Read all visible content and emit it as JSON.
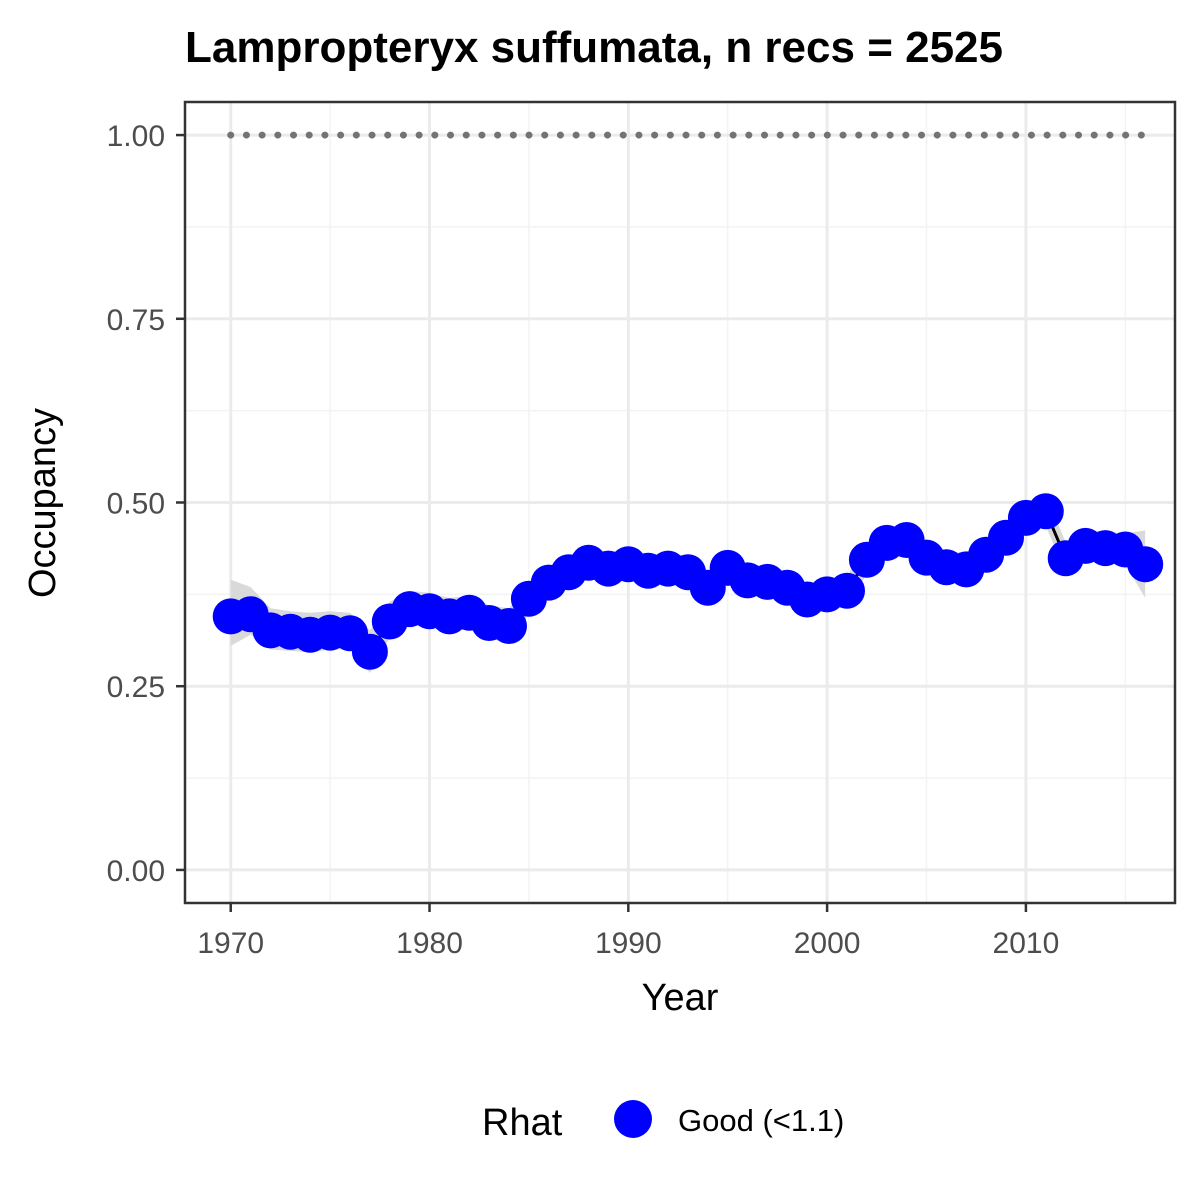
{
  "chart_data": {
    "type": "line",
    "title": "Lampropteryx suffumata, n recs = 2525",
    "xlabel": "Year",
    "ylabel": "Occupancy",
    "xlim": [
      1967.7,
      2017.5
    ],
    "ylim": [
      -0.045,
      1.045
    ],
    "x_ticks": [
      1970,
      1980,
      1990,
      2000,
      2010
    ],
    "x_tick_labels": [
      "1970",
      "1980",
      "1990",
      "2000",
      "2010"
    ],
    "y_ticks": [
      0,
      0.25,
      0.5,
      0.75,
      1.0
    ],
    "y_tick_labels": [
      "0.00",
      "0.25",
      "0.50",
      "0.75",
      "1.00"
    ],
    "grid": true,
    "x": [
      1970,
      1971,
      1972,
      1973,
      1974,
      1975,
      1976,
      1977,
      1978,
      1979,
      1980,
      1981,
      1982,
      1983,
      1984,
      1985,
      1986,
      1987,
      1988,
      1989,
      1990,
      1991,
      1992,
      1993,
      1994,
      1995,
      1996,
      1997,
      1998,
      1999,
      2000,
      2001,
      2002,
      2003,
      2004,
      2005,
      2006,
      2007,
      2008,
      2009,
      2010,
      2011,
      2012,
      2013,
      2014,
      2015,
      2016
    ],
    "series": [
      {
        "values": [
          0.345,
          0.348,
          0.326,
          0.324,
          0.32,
          0.323,
          0.322,
          0.297,
          0.338,
          0.355,
          0.352,
          0.345,
          0.35,
          0.336,
          0.332,
          0.369,
          0.391,
          0.405,
          0.418,
          0.41,
          0.416,
          0.407,
          0.41,
          0.405,
          0.384,
          0.411,
          0.394,
          0.392,
          0.384,
          0.368,
          0.375,
          0.38,
          0.422,
          0.445,
          0.449,
          0.425,
          0.412,
          0.409,
          0.429,
          0.452,
          0.479,
          0.488,
          0.424,
          0.441,
          0.438,
          0.436,
          0.416
        ],
        "lower": [
          0.305,
          0.32,
          0.3,
          0.298,
          0.296,
          0.3,
          0.3,
          0.268,
          0.316,
          0.333,
          0.33,
          0.324,
          0.328,
          0.314,
          0.31,
          0.348,
          0.37,
          0.385,
          0.398,
          0.39,
          0.396,
          0.387,
          0.39,
          0.385,
          0.364,
          0.391,
          0.374,
          0.372,
          0.365,
          0.35,
          0.357,
          0.362,
          0.402,
          0.425,
          0.429,
          0.405,
          0.392,
          0.389,
          0.409,
          0.432,
          0.459,
          0.468,
          0.404,
          0.421,
          0.418,
          0.416,
          0.37
        ],
        "upper": [
          0.395,
          0.385,
          0.356,
          0.352,
          0.35,
          0.352,
          0.35,
          0.326,
          0.365,
          0.38,
          0.377,
          0.37,
          0.373,
          0.36,
          0.356,
          0.392,
          0.413,
          0.427,
          0.44,
          0.432,
          0.438,
          0.429,
          0.432,
          0.427,
          0.406,
          0.433,
          0.416,
          0.414,
          0.405,
          0.388,
          0.395,
          0.4,
          0.444,
          0.467,
          0.471,
          0.447,
          0.434,
          0.431,
          0.451,
          0.474,
          0.501,
          0.51,
          0.446,
          0.463,
          0.46,
          0.458,
          0.462
        ]
      }
    ],
    "reference_line": {
      "y": 1.0,
      "style": "dotted",
      "color": "#737373"
    },
    "colors": {
      "points": "#0000ff",
      "line": "#000000",
      "ribbon": "#d9d9d9",
      "grid_major": "#ebebeb",
      "grid_minor": "#f3f3f3",
      "panel_border": "#333333"
    },
    "legend": {
      "title": "Rhat",
      "position": "bottom",
      "entries": [
        {
          "label": "Good (<1.1)",
          "color": "#0000ff"
        }
      ]
    }
  }
}
